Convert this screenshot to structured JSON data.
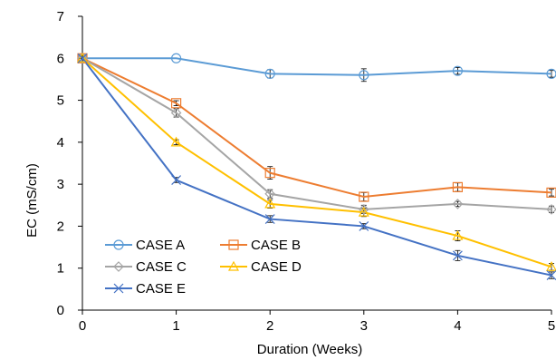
{
  "chart_data": {
    "type": "line",
    "title": "",
    "xlabel": "Duration (Weeks)",
    "ylabel": "EC (mS/cm)",
    "x": [
      0,
      1,
      2,
      3,
      4,
      5
    ],
    "x_tick_labels": [
      "0",
      "1",
      "2",
      "3",
      "4",
      "5"
    ],
    "y_tick_labels": [
      "0",
      "1",
      "2",
      "3",
      "4",
      "5",
      "6",
      "7"
    ],
    "xlim": [
      0,
      5
    ],
    "ylim": [
      0,
      7
    ],
    "grid": false,
    "legend_position": "bottom-left",
    "series": [
      {
        "name": "CASE A",
        "color": "#5B9BD5",
        "marker": "circle",
        "values": [
          6.0,
          6.0,
          5.63,
          5.6,
          5.7,
          5.63
        ],
        "errors": [
          0,
          0,
          0.1,
          0.15,
          0.08,
          0.08
        ]
      },
      {
        "name": "CASE B",
        "color": "#ED7D31",
        "marker": "square",
        "values": [
          6.0,
          4.93,
          3.27,
          2.7,
          2.93,
          2.8
        ],
        "errors": [
          0,
          0.06,
          0.15,
          0.1,
          0.1,
          0.08
        ]
      },
      {
        "name": "CASE C",
        "color": "#A5A5A5",
        "marker": "diamond",
        "values": [
          6.0,
          4.7,
          2.77,
          2.4,
          2.53,
          2.4
        ],
        "errors": [
          0,
          0.1,
          0.1,
          0.1,
          0.06,
          0.08
        ]
      },
      {
        "name": "CASE D",
        "color": "#FFC000",
        "marker": "triangle",
        "values": [
          6.0,
          4.0,
          2.53,
          2.33,
          1.77,
          1.03
        ],
        "errors": [
          0,
          0.06,
          0.1,
          0.1,
          0.12,
          0.08
        ]
      },
      {
        "name": "CASE E",
        "color": "#4472C4",
        "marker": "x",
        "values": [
          6.0,
          3.1,
          2.17,
          2.0,
          1.3,
          0.83
        ],
        "errors": [
          0,
          0.06,
          0.08,
          0.06,
          0.12,
          0.08
        ]
      }
    ]
  }
}
